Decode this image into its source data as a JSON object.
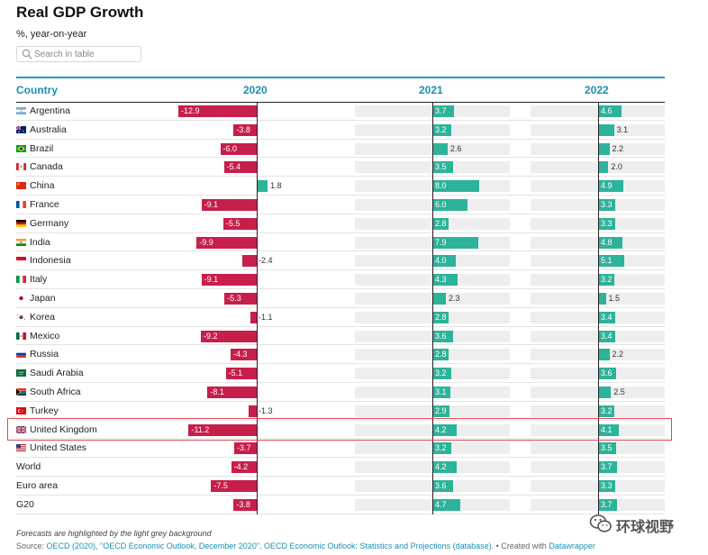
{
  "header": {
    "title": "Real GDP Growth",
    "subtitle": "%, year-on-year"
  },
  "search": {
    "placeholder": "Search in table",
    "icon": "search-icon"
  },
  "table": {
    "columns": [
      "Country",
      "2020",
      "2021",
      "2022"
    ],
    "highlighted_row": "United Kingdom"
  },
  "colors": {
    "negative": "#c71e4b",
    "positive": "#2db39a",
    "header": "#1d8fb0",
    "highlight": "#e0484f",
    "forecast_bg": "#eeeeee"
  },
  "chart_data": {
    "type": "table",
    "categories": [
      "Argentina",
      "Australia",
      "Brazil",
      "Canada",
      "China",
      "France",
      "Germany",
      "India",
      "Indonesia",
      "Italy",
      "Japan",
      "Korea",
      "Mexico",
      "Russia",
      "Saudi Arabia",
      "South Africa",
      "Turkey",
      "United Kingdom",
      "United States",
      "World",
      "Euro area",
      "G20"
    ],
    "series": [
      {
        "name": "2020",
        "values": [
          -12.9,
          -3.8,
          -6.0,
          -5.4,
          1.8,
          -9.1,
          -5.5,
          -9.9,
          -2.4,
          -9.1,
          -5.3,
          -1.1,
          -9.2,
          -4.3,
          -5.1,
          -8.1,
          -1.3,
          -11.2,
          -3.7,
          -4.2,
          -7.5,
          -3.8
        ]
      },
      {
        "name": "2021",
        "values": [
          3.7,
          3.2,
          2.6,
          3.5,
          8.0,
          6.0,
          2.8,
          7.9,
          4.0,
          4.3,
          2.3,
          2.8,
          3.6,
          2.8,
          3.2,
          3.1,
          2.9,
          4.2,
          3.2,
          4.2,
          3.6,
          4.7
        ]
      },
      {
        "name": "2022",
        "values": [
          4.6,
          3.1,
          2.2,
          2.0,
          4.9,
          3.3,
          3.3,
          4.8,
          5.1,
          3.2,
          1.5,
          3.4,
          3.4,
          2.2,
          3.6,
          2.5,
          3.2,
          4.1,
          3.5,
          3.7,
          3.3,
          3.7
        ]
      }
    ],
    "flags": {
      "Argentina": "argentina-flag-icon",
      "Australia": "australia-flag-icon",
      "Brazil": "brazil-flag-icon",
      "Canada": "canada-flag-icon",
      "China": "china-flag-icon",
      "France": "france-flag-icon",
      "Germany": "germany-flag-icon",
      "India": "india-flag-icon",
      "Indonesia": "indonesia-flag-icon",
      "Italy": "italy-flag-icon",
      "Japan": "japan-flag-icon",
      "Korea": "korea-flag-icon",
      "Mexico": "mexico-flag-icon",
      "Russia": "russia-flag-icon",
      "Saudi Arabia": "saudi-arabia-flag-icon",
      "South Africa": "south-africa-flag-icon",
      "Turkey": "turkey-flag-icon",
      "United Kingdom": "united-kingdom-flag-icon",
      "United States": "united-states-flag-icon"
    }
  },
  "footer": {
    "note": "Forecasts are highlighted by the light grey background",
    "source_prefix": "Source: ",
    "source_link": "OECD (2020), \"OECD Economic Outlook, December 2020\", OECD Economic Outlook: Statistics and Projections (database).",
    "created_prefix": " • Created with ",
    "created_link": "Datawrapper"
  },
  "watermark": {
    "text": "环球视野",
    "icon": "wechat-icon"
  }
}
